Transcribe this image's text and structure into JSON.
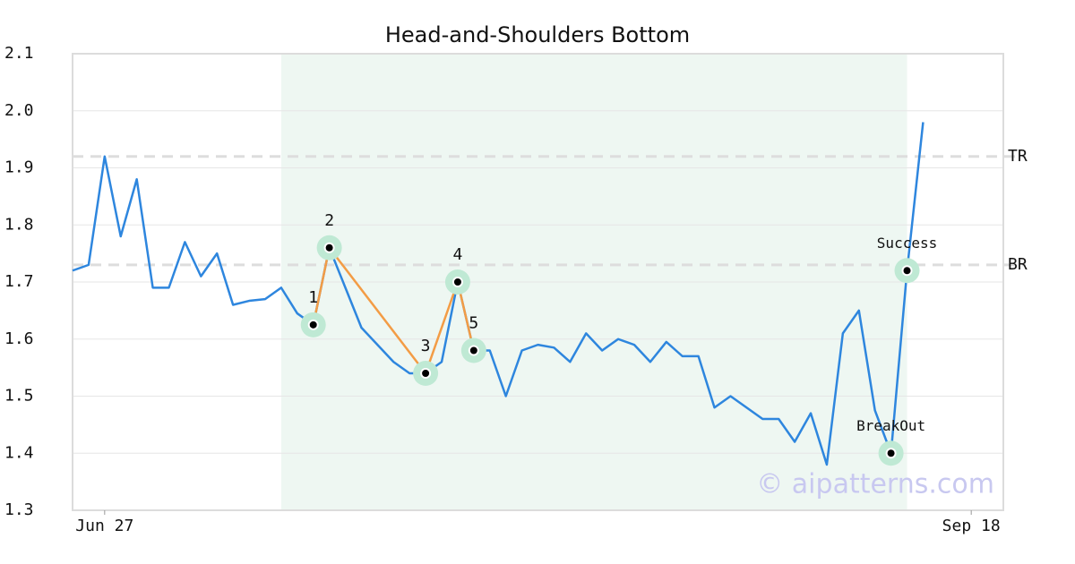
{
  "chart_data": {
    "type": "line",
    "title": "Head-and-Shoulders Bottom",
    "categories": [
      null,
      null,
      "Jun 27",
      null,
      null,
      null,
      null,
      null,
      null,
      null,
      null,
      null,
      null,
      null,
      null,
      null,
      null,
      null,
      null,
      null,
      null,
      null,
      null,
      null,
      null,
      null,
      null,
      null,
      null,
      null,
      null,
      null,
      null,
      null,
      null,
      null,
      null,
      null,
      null,
      null,
      null,
      null,
      null,
      null,
      null,
      null,
      null,
      null,
      null,
      null,
      null,
      null,
      null,
      null,
      null,
      null,
      "Sep 18",
      null,
      null
    ],
    "series": [
      {
        "color": "#2e86de",
        "values": [
          1.72,
          1.73,
          1.92,
          1.78,
          1.88,
          1.69,
          1.69,
          1.77,
          1.71,
          1.75,
          1.66,
          1.667,
          1.67,
          1.69,
          1.645,
          1.625,
          1.76,
          1.69,
          1.62,
          1.59,
          1.56,
          1.54,
          1.54,
          1.56,
          1.7,
          1.58,
          1.58,
          1.5,
          1.58,
          1.59,
          1.585,
          1.56,
          1.61,
          1.58,
          1.6,
          1.59,
          1.56,
          1.595,
          1.57,
          1.57,
          1.48,
          1.5,
          1.48,
          1.46,
          1.46,
          1.42,
          1.47,
          1.38,
          1.61,
          1.65,
          1.475,
          1.4,
          1.72,
          1.98,
          null,
          null,
          null,
          null,
          null
        ]
      }
    ],
    "pattern": {
      "color": "#f39c45",
      "x": [
        15,
        16,
        22,
        24,
        25
      ],
      "values": [
        1.625,
        1.76,
        1.54,
        1.7,
        1.58
      ],
      "labels": [
        "1",
        "2",
        "3",
        "4",
        "5"
      ]
    },
    "signals": {
      "x": [
        51,
        52
      ],
      "values": [
        1.4,
        1.72
      ],
      "labels": [
        "BreakOut",
        "Success"
      ]
    },
    "shaded_range": [
      13,
      52
    ],
    "reference_lines": [
      {
        "name": "TR",
        "value": 1.92
      },
      {
        "name": "BR",
        "value": 1.73
      }
    ],
    "ylim": [
      1.3,
      2.1
    ],
    "yticks": [
      1.3,
      1.4,
      1.5,
      1.6,
      1.7,
      1.8,
      1.9,
      {
        "value": 2,
        "label": "2.0"
      },
      2.1
    ],
    "grid": true,
    "watermark": "© aipatterns.com"
  }
}
